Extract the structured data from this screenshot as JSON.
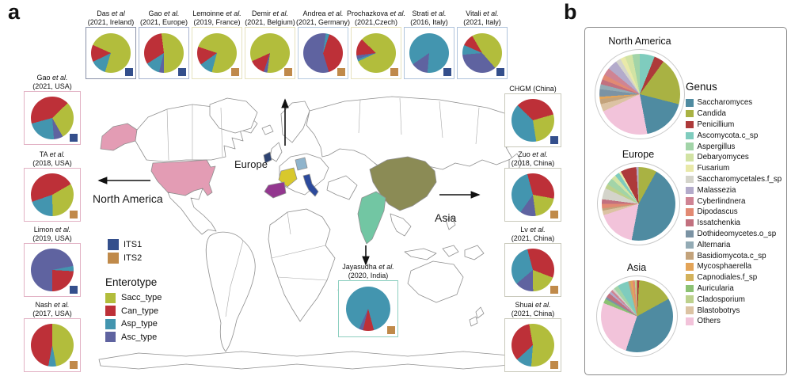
{
  "panel_a": {
    "label": "a",
    "its_legend": [
      {
        "label": "ITS1",
        "color": "#344f8c"
      },
      {
        "label": "ITS2",
        "color": "#c08a4a"
      }
    ],
    "enterotype_legend": {
      "title": "Enterotype",
      "items": [
        {
          "label": "Sacc_type",
          "color": "#b2bd3c"
        },
        {
          "label": "Can_type",
          "color": "#bd3038"
        },
        {
          "label": "Asp_type",
          "color": "#4395af"
        },
        {
          "label": "Asc_type",
          "color": "#5f63a0"
        }
      ]
    },
    "map_labels": {
      "europe": "Europe",
      "north_america": "North America",
      "asia": "Asia"
    },
    "map_countries": [
      {
        "name": "usa",
        "color": "#e39cb4"
      },
      {
        "name": "alaska",
        "color": "#e39cb4"
      },
      {
        "name": "ireland",
        "color": "#2e4372"
      },
      {
        "name": "france",
        "color": "#d8c82c"
      },
      {
        "name": "germany",
        "color": "#8fb4cc"
      },
      {
        "name": "spain",
        "color": "#93378f"
      },
      {
        "name": "italy",
        "color": "#2c4a9c"
      },
      {
        "name": "china",
        "color": "#8b8b55"
      },
      {
        "name": "india",
        "color": "#72c6a3"
      }
    ]
  },
  "panel_b": {
    "label": "b",
    "genus_legend": {
      "title": "Genus",
      "items": [
        {
          "name": "Saccharomyces",
          "color": "#4f8ba1"
        },
        {
          "name": "Candida",
          "color": "#a9b243"
        },
        {
          "name": "Penicillium",
          "color": "#ad3a3a"
        },
        {
          "name": "Ascomycota.c_sp",
          "color": "#7fccbe"
        },
        {
          "name": "Aspergillus",
          "color": "#a2d4a8"
        },
        {
          "name": "Debaryomyces",
          "color": "#d2e3a4"
        },
        {
          "name": "Fusarium",
          "color": "#e9e9a9"
        },
        {
          "name": "Saccharomycetales.f_sp",
          "color": "#d4d4cb"
        },
        {
          "name": "Malassezia",
          "color": "#b3abcb"
        },
        {
          "name": "Cyberlindnera",
          "color": "#cf8494"
        },
        {
          "name": "Dipodascus",
          "color": "#e28a73"
        },
        {
          "name": "Issatchenkia",
          "color": "#c2717f"
        },
        {
          "name": "Dothideomycetes.o_sp",
          "color": "#7b93a4"
        },
        {
          "name": "Alternaria",
          "color": "#93abb5"
        },
        {
          "name": "Basidiomycota.c_sp",
          "color": "#c3a37b"
        },
        {
          "name": "Mycosphaerella",
          "color": "#e3a458"
        },
        {
          "name": "Capnodiales.f_sp",
          "color": "#d3b25c"
        },
        {
          "name": "Auricularia",
          "color": "#8cc273"
        },
        {
          "name": "Cladosporium",
          "color": "#bdd18d"
        },
        {
          "name": "Blastobotrys",
          "color": "#dcc3a3"
        },
        {
          "name": "Others",
          "color": "#f2c3da"
        }
      ]
    }
  },
  "chart_data": [
    {
      "id": "das_ireland",
      "panel": "a",
      "type": "pie",
      "author": "Das",
      "etal": "et al",
      "year": "(2021, Ireland)",
      "marker": "ITS1",
      "border": "#8a92a8",
      "rot": 197,
      "slices": [
        [
          "Asp_type",
          13
        ],
        [
          "Can_type",
          14
        ],
        [
          "Sacc_type",
          73
        ]
      ]
    },
    {
      "id": "gao_europe",
      "panel": "a",
      "type": "pie",
      "author": "Gao",
      "etal": "et al.",
      "year": "(2021, Europe)",
      "marker": "ITS1",
      "border": "#a8b4d0",
      "rot": 180,
      "slices": [
        [
          "Asc_type",
          4
        ],
        [
          "Asp_type",
          12
        ],
        [
          "Can_type",
          32
        ],
        [
          "Sacc_type",
          52
        ]
      ]
    },
    {
      "id": "lemoinne_france",
      "panel": "a",
      "type": "pie",
      "author": "Lemoinne",
      "etal": "et al.",
      "year": "(2019, France)",
      "marker": "ITS2",
      "border": "#e6e2be",
      "rot": 195,
      "slices": [
        [
          "Asp_type",
          11
        ],
        [
          "Can_type",
          15
        ],
        [
          "Sacc_type",
          74
        ]
      ]
    },
    {
      "id": "demir_belgium",
      "panel": "a",
      "type": "pie",
      "author": "Demir",
      "etal": "et al.",
      "year": "(2021, Belgium)",
      "marker": "ITS2",
      "border": "#e6e2be",
      "rot": 188,
      "slices": [
        [
          "Asc_type",
          3
        ],
        [
          "Can_type",
          13
        ],
        [
          "Sacc_type",
          84
        ]
      ]
    },
    {
      "id": "andrea_germany",
      "panel": "a",
      "type": "pie",
      "author": "Andrea",
      "etal": "et al.",
      "year": "(2021, Germany)",
      "marker": "ITS2",
      "border": "#b8cce0",
      "rot": 8,
      "slices": [
        [
          "Asp_type",
          3
        ],
        [
          "Can_type",
          40
        ],
        [
          "Asc_type",
          57
        ]
      ]
    },
    {
      "id": "prochazkova_czech",
      "panel": "a",
      "type": "pie",
      "author": "Prochazkova",
      "etal": "et al.",
      "year": "(2021,Czech)",
      "marker": "ITS2",
      "border": "#e6e2be",
      "rot": 245,
      "slices": [
        [
          "Asp_type",
          2
        ],
        [
          "Asc_type",
          3
        ],
        [
          "Can_type",
          14
        ],
        [
          "Sacc_type",
          81
        ]
      ]
    },
    {
      "id": "strati_italy",
      "panel": "a",
      "type": "pie",
      "author": "Strati",
      "etal": "et al.",
      "year": "(2016, Italy)",
      "marker": "ITS1",
      "border": "#b0c4dc",
      "rot": 185,
      "slices": [
        [
          "Asc_type",
          14
        ],
        [
          "Asp_type",
          86
        ]
      ]
    },
    {
      "id": "vitali_italy",
      "panel": "a",
      "type": "pie",
      "author": "Vitali",
      "etal": "et al.",
      "year": "(2021, Italy)",
      "marker": "ITS1",
      "border": "#b0c4dc",
      "rot": 139,
      "slices": [
        [
          "Asc_type",
          35
        ],
        [
          "Asp_type",
          8
        ],
        [
          "Can_type",
          10
        ],
        [
          "Sacc_type",
          47
        ]
      ]
    },
    {
      "id": "gao_usa",
      "panel": "a",
      "type": "pie",
      "author": "Gao",
      "etal": "et al.",
      "year": "(2021, USA)",
      "marker": "ITS1",
      "border": "#e2b2c4",
      "rot": 46,
      "slices": [
        [
          "Sacc_type",
          29
        ],
        [
          "Asc_type",
          7
        ],
        [
          "Asp_type",
          22
        ],
        [
          "Can_type",
          42
        ]
      ]
    },
    {
      "id": "ta_usa",
      "panel": "a",
      "type": "pie",
      "author": "TA",
      "etal": "et al.",
      "year": "(2018, USA)",
      "marker": "ITS2",
      "border": "#e2b2c4",
      "rot": 60,
      "slices": [
        [
          "Sacc_type",
          33
        ],
        [
          "Asp_type",
          20
        ],
        [
          "Can_type",
          47
        ]
      ]
    },
    {
      "id": "limon_usa",
      "panel": "a",
      "type": "pie",
      "author": "Limon",
      "etal": "et al.",
      "year": "(2019, USA)",
      "marker": "ITS1",
      "border": "#e2b2c4",
      "rot": 79,
      "slices": [
        [
          "Asp_type",
          4
        ],
        [
          "Can_type",
          24
        ],
        [
          "Asc_type",
          72
        ]
      ]
    },
    {
      "id": "nash_usa",
      "panel": "a",
      "type": "pie",
      "author": "Nash",
      "etal": "et al.",
      "year": "(2017, USA)",
      "marker": "ITS2",
      "border": "#e2b2c4",
      "rot": 0,
      "slices": [
        [
          "Sacc_type",
          47
        ],
        [
          "Asp_type",
          6
        ],
        [
          "Can_type",
          47
        ]
      ]
    },
    {
      "id": "chgm_china",
      "panel": "a",
      "type": "pie",
      "author": "",
      "etal": "",
      "year": "CHGM (China)",
      "marker": "ITS1",
      "border": "#c9c9bb",
      "rot": 315,
      "slices": [
        [
          "Can_type",
          33
        ],
        [
          "Sacc_type",
          27
        ],
        [
          "Asp_type",
          40
        ]
      ]
    },
    {
      "id": "zuo_china",
      "panel": "a",
      "type": "pie",
      "author": "Zuo",
      "etal": "et al.",
      "year": "(2018, China)",
      "marker": "ITS2",
      "border": "#c9c9bb",
      "rot": 345,
      "slices": [
        [
          "Can_type",
          32
        ],
        [
          "Sacc_type",
          20
        ],
        [
          "Asc_type",
          12
        ],
        [
          "Asp_type",
          36
        ]
      ]
    },
    {
      "id": "lv_china",
      "panel": "a",
      "type": "pie",
      "author": "Lv",
      "etal": "et al.",
      "year": "(2021, China)",
      "marker": "ITS2",
      "border": "#c9c9bb",
      "rot": 345,
      "slices": [
        [
          "Can_type",
          35
        ],
        [
          "Sacc_type",
          19
        ],
        [
          "Asc_type",
          14
        ],
        [
          "Asp_type",
          32
        ]
      ]
    },
    {
      "id": "shuai_china",
      "panel": "a",
      "type": "pie",
      "author": "Shuai",
      "etal": "et al.",
      "year": "(2021, China)",
      "marker": "ITS2",
      "border": "#c9c9bb",
      "rot": 350,
      "slices": [
        [
          "Sacc_type",
          54
        ],
        [
          "Asp_type",
          12
        ],
        [
          "Can_type",
          34
        ]
      ]
    },
    {
      "id": "jayasudha_india",
      "panel": "a",
      "type": "pie",
      "author": "Jayasudha",
      "etal": "et al.",
      "year": "(2020, India)",
      "marker": "ITS2",
      "border": "#8ecfc0",
      "rot": 165,
      "slices": [
        [
          "Can_type",
          8
        ],
        [
          "Asc_type",
          3
        ],
        [
          "Asp_type",
          89
        ]
      ]
    },
    {
      "id": "north_america",
      "panel": "b",
      "type": "pie",
      "title": "North America",
      "rot": 0,
      "slices": [
        [
          "Ascomycota.c_sp",
          6
        ],
        [
          "Penicillium",
          4
        ],
        [
          "Candida",
          19
        ],
        [
          "Saccharomyces",
          18
        ],
        [
          "Others",
          21
        ],
        [
          "Blastobotrys",
          3
        ],
        [
          "Basidiomycota.c_sp",
          2
        ],
        [
          "Mycosphaerella",
          1
        ],
        [
          "Dothideomycetes.o_sp",
          3
        ],
        [
          "Alternaria",
          2
        ],
        [
          "Issatchenkia",
          2
        ],
        [
          "Dipodascus",
          2
        ],
        [
          "Cyberlindnera",
          3
        ],
        [
          "Malassezia",
          4
        ],
        [
          "Saccharomycetales.f_sp",
          2
        ],
        [
          "Fusarium",
          2
        ],
        [
          "Debaryomyces",
          3
        ],
        [
          "Aspergillus",
          3
        ]
      ]
    },
    {
      "id": "europe_region",
      "panel": "b",
      "type": "pie",
      "title": "Europe",
      "rot": 0,
      "slices": [
        [
          "Candida",
          8
        ],
        [
          "Saccharomyces",
          45
        ],
        [
          "Others",
          17
        ],
        [
          "Blastobotrys",
          2
        ],
        [
          "Basidiomycota.c_sp",
          1
        ],
        [
          "Dipodascus",
          2
        ],
        [
          "Issatchenkia",
          2
        ],
        [
          "Saccharomycetales.f_sp",
          5
        ],
        [
          "Cladosporium",
          2
        ],
        [
          "Aspergillus",
          3
        ],
        [
          "Debaryomyces",
          2
        ],
        [
          "Ascomycota.c_sp",
          2
        ],
        [
          "Fusarium",
          1
        ],
        [
          "Penicillium",
          7
        ],
        [
          "Malassezia",
          1
        ]
      ]
    },
    {
      "id": "asia_region",
      "panel": "b",
      "type": "pie",
      "title": "Asia",
      "rot": 0,
      "slices": [
        [
          "Penicillium",
          1
        ],
        [
          "Candida",
          16
        ],
        [
          "Saccharomyces",
          38
        ],
        [
          "Others",
          26
        ],
        [
          "Auricularia",
          2
        ],
        [
          "Dothideomycetes.o_sp",
          1
        ],
        [
          "Issatchenkia",
          2
        ],
        [
          "Malassezia",
          1
        ],
        [
          "Cyberlindnera",
          1
        ],
        [
          "Saccharomycetales.f_sp",
          1
        ],
        [
          "Aspergillus",
          2
        ],
        [
          "Ascomycota.c_sp",
          5
        ],
        [
          "Basidiomycota.c_sp",
          1
        ],
        [
          "Mycosphaerella",
          1
        ],
        [
          "Dipodascus",
          1
        ],
        [
          "Cladosporium",
          1
        ]
      ]
    }
  ]
}
